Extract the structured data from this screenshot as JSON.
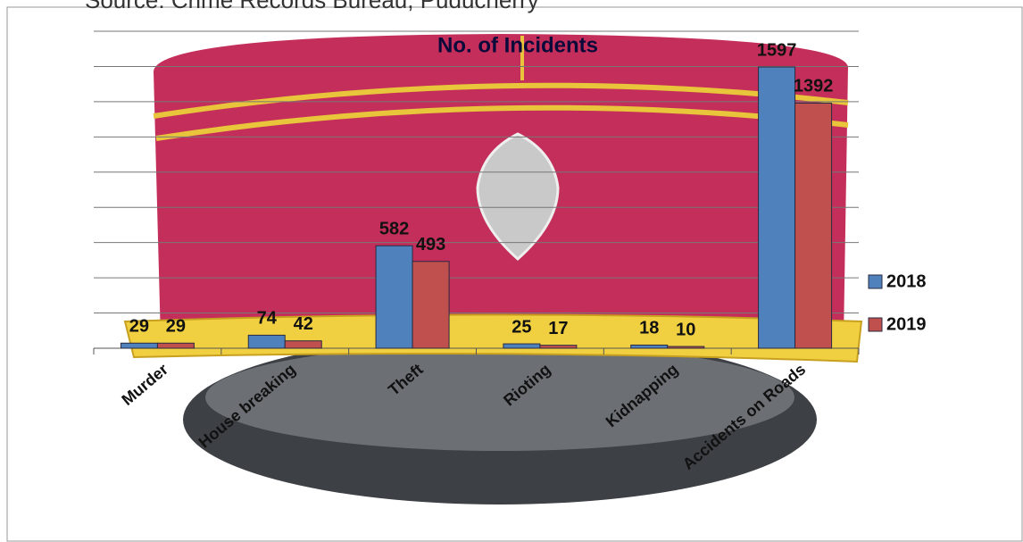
{
  "source": "Source: Crime Records Bureau, Puducherry",
  "chart_data": {
    "type": "bar",
    "title": "No. of Incidents",
    "categories": [
      "Murder",
      "House breaking",
      "Theft",
      "Rioting",
      "Kidnapping",
      "Accidents on Roads"
    ],
    "series": [
      {
        "name": "2018",
        "color": "#4f81bd",
        "values": [
          29,
          74,
          582,
          25,
          18,
          1597
        ]
      },
      {
        "name": "2019",
        "color": "#c0504d",
        "values": [
          29,
          42,
          493,
          17,
          10,
          1392
        ]
      }
    ],
    "ylim": [
      0,
      1800
    ],
    "yticks": [
      0,
      200,
      400,
      600,
      800,
      1000,
      1200,
      1400,
      1600,
      1800
    ],
    "grid": true,
    "legend": "right"
  }
}
